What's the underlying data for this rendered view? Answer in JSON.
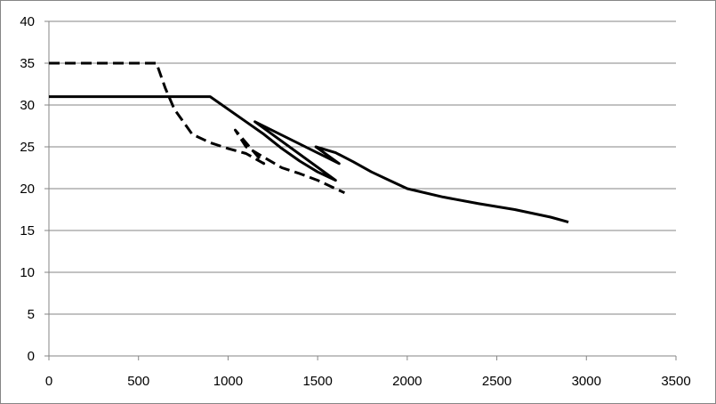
{
  "chart_data": {
    "type": "line",
    "title": "",
    "xlabel": "",
    "ylabel": "",
    "xlim": [
      0,
      3500
    ],
    "ylim": [
      0,
      40
    ],
    "x_ticks": [
      0,
      500,
      1000,
      1500,
      2000,
      2500,
      3000,
      3500
    ],
    "y_ticks": [
      0,
      5,
      10,
      15,
      20,
      25,
      30,
      35,
      40
    ],
    "x_tick_labels": [
      "0",
      "500",
      "1000",
      "1500",
      "2000",
      "2500",
      "3000",
      "3500"
    ],
    "y_tick_labels": [
      "0",
      "5",
      "10",
      "15",
      "20",
      "25",
      "30",
      "35",
      "40"
    ],
    "grid": "horizontal",
    "legend": "none",
    "series": [
      {
        "style": "solid",
        "color": "#000000",
        "points": [
          [
            0,
            31
          ],
          [
            900,
            31
          ],
          [
            1000,
            29.5
          ],
          [
            1100,
            28
          ],
          [
            1200,
            26.5
          ],
          [
            1300,
            24.8
          ],
          [
            1400,
            23.3
          ],
          [
            1500,
            22
          ],
          [
            1600,
            21
          ],
          [
            1150,
            28
          ],
          [
            1620,
            23
          ],
          [
            1490,
            25
          ],
          [
            1600,
            24.3
          ],
          [
            1700,
            23.2
          ],
          [
            1800,
            22
          ],
          [
            1900,
            21
          ],
          [
            2000,
            20
          ],
          [
            2200,
            19
          ],
          [
            2400,
            18.2
          ],
          [
            2600,
            17.5
          ],
          [
            2800,
            16.6
          ],
          [
            2900,
            16
          ]
        ]
      },
      {
        "style": "dashed",
        "color": "#000000",
        "points": [
          [
            0,
            35
          ],
          [
            600,
            35
          ],
          [
            650,
            32
          ],
          [
            700,
            29.5
          ],
          [
            750,
            28
          ],
          [
            800,
            26.5
          ],
          [
            900,
            25.5
          ],
          [
            1000,
            24.8
          ],
          [
            1100,
            24.2
          ],
          [
            1200,
            23
          ],
          [
            1040,
            27
          ],
          [
            1100,
            25
          ],
          [
            1300,
            22.5
          ],
          [
            1400,
            21.8
          ],
          [
            1500,
            21
          ],
          [
            1600,
            20
          ],
          [
            1650,
            19.5
          ]
        ]
      }
    ]
  }
}
